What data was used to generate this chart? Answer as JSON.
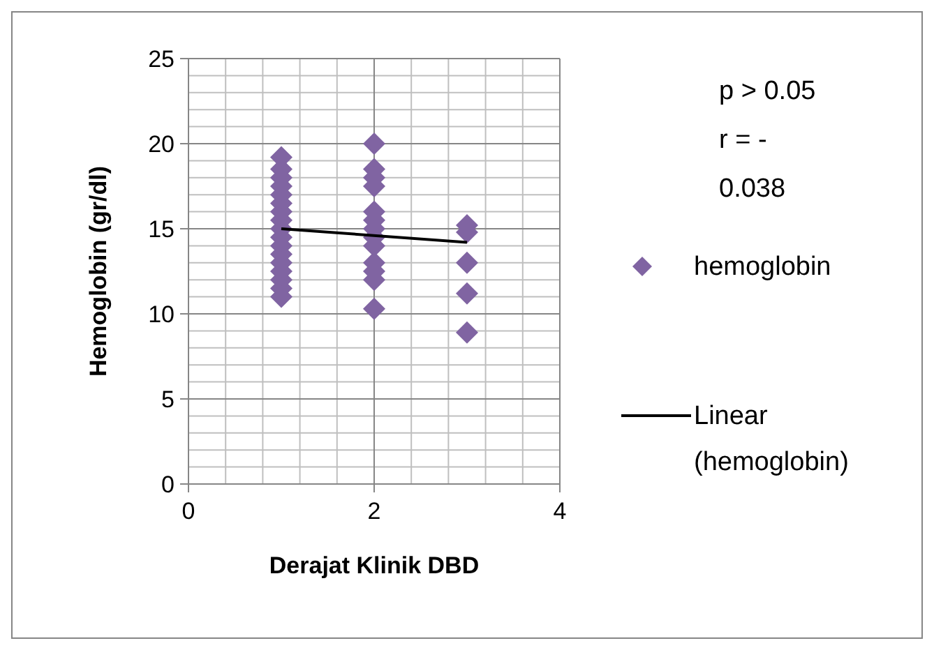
{
  "chart_data": {
    "type": "scatter",
    "xlabel": "Derajat Klinik DBD",
    "ylabel": "Hemoglobin (gr/dl)",
    "xlim": [
      0,
      4
    ],
    "xticks": [
      0,
      2,
      4
    ],
    "ylim": [
      0,
      25
    ],
    "yticks": [
      0,
      5,
      10,
      15,
      20,
      25
    ],
    "grid": true,
    "legend": "right",
    "annotations": [
      "p > 0.05",
      "r = - 0.038"
    ],
    "series": [
      {
        "name": "hemoglobin",
        "color": "#8064a2",
        "marker": "diamond",
        "x": [
          1,
          1,
          1,
          1,
          1,
          1,
          1,
          1,
          1,
          1,
          1,
          1,
          1,
          1,
          1,
          1,
          1,
          2,
          2,
          2,
          2,
          2,
          2,
          2,
          2,
          2,
          2,
          2,
          2,
          2,
          3,
          3,
          3,
          3,
          3
        ],
        "values": [
          19.2,
          18.5,
          18,
          17.5,
          17,
          16.5,
          16,
          15.5,
          15,
          14.5,
          14,
          13.5,
          13,
          12.5,
          12,
          11.5,
          11,
          20,
          18.5,
          18,
          17.5,
          16,
          15.5,
          15,
          14.5,
          14,
          13,
          12.5,
          12,
          10.3,
          15.2,
          14.8,
          13,
          11.2,
          8.9
        ]
      },
      {
        "name": "Linear (hemoglobin)",
        "type": "line",
        "color": "#000000",
        "marker": "none",
        "line_style": "solid",
        "x": [
          1,
          3
        ],
        "values": [
          15.0,
          14.2
        ]
      }
    ]
  }
}
